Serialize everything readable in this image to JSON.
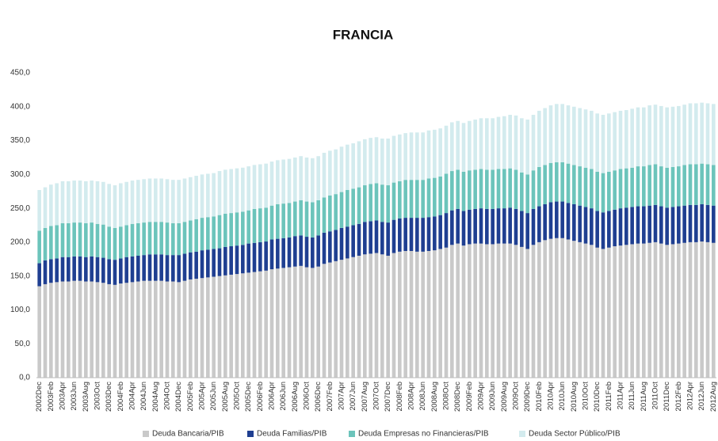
{
  "chart_data": {
    "type": "stacked_bar",
    "title": "FRANCIA",
    "categories": [
      "2002Dec",
      null,
      "2003Feb",
      null,
      "2003Apr",
      null,
      "2003Jun",
      null,
      "2003Aug",
      null,
      "2003Oct",
      null,
      "2003Dec",
      null,
      "2004Feb",
      null,
      "2004Apr",
      null,
      "2004Jun",
      null,
      "2004Aug",
      null,
      "2004Oct",
      null,
      "2004Dec",
      null,
      "2005Feb",
      null,
      "2005Apr",
      null,
      "2005Jun",
      null,
      "2005Aug",
      null,
      "2005Oct",
      null,
      "2005Dec",
      null,
      "2006Feb",
      null,
      "2006Apr",
      null,
      "2006Jun",
      null,
      "2006Aug",
      null,
      "2006Oct",
      null,
      "2006Dec",
      null,
      "2007Feb",
      null,
      "2007Apr",
      null,
      "2007Jun",
      null,
      "2007Aug",
      null,
      "2007Oct",
      null,
      "2007Dec",
      null,
      "2008Feb",
      null,
      "2008Apr",
      null,
      "2008Jun",
      null,
      "2008Aug",
      null,
      "2008Oct",
      null,
      "2008Dec",
      null,
      "2009Feb",
      null,
      "2009Apr",
      null,
      "2009Jun",
      null,
      "2009Aug",
      null,
      "2009Oct",
      null,
      "2009Dec",
      null,
      "2010Feb",
      null,
      "2010Apr",
      null,
      "2010Jun",
      null,
      "2010Aug",
      null,
      "2010Oct",
      null,
      "2010Dec",
      null,
      "2011Feb",
      null,
      "2011Apr",
      null,
      "2011Jun",
      null,
      "2011Aug",
      null,
      "2011Oct",
      null,
      "2011Dec",
      null,
      "2012Feb",
      null,
      "2012Apr",
      null,
      "2012Jun",
      null,
      "2012Aug"
    ],
    "series": [
      {
        "name": "Deuda Bancaria/PIB",
        "color": "#c9c9c9",
        "values": [
          135,
          138,
          140,
          141,
          142,
          142,
          143,
          143,
          142,
          142,
          141,
          140,
          138,
          137,
          139,
          140,
          141,
          142,
          143,
          143,
          143,
          143,
          142,
          142,
          141,
          143,
          145,
          146,
          147,
          148,
          149,
          150,
          151,
          152,
          153,
          154,
          155,
          156,
          157,
          158,
          160,
          161,
          162,
          163,
          164,
          165,
          163,
          162,
          164,
          168,
          170,
          172,
          174,
          176,
          178,
          180,
          182,
          183,
          184,
          182,
          180,
          184,
          186,
          187,
          187,
          186,
          186,
          187,
          188,
          190,
          192,
          196,
          198,
          195,
          197,
          198,
          198,
          197,
          197,
          198,
          198,
          198,
          196,
          193,
          190,
          196,
          200,
          203,
          205,
          206,
          206,
          204,
          202,
          200,
          198,
          196,
          192,
          190,
          192,
          194,
          195,
          196,
          197,
          198,
          198,
          199,
          200,
          198,
          196,
          197,
          198,
          199,
          200,
          200,
          201,
          200,
          199
        ]
      },
      {
        "name": "Deuda Familias/PIB",
        "color": "#1f3f91",
        "values": [
          34,
          35,
          35,
          35,
          36,
          36,
          36,
          36,
          36,
          37,
          37,
          37,
          37,
          37,
          37,
          38,
          38,
          38,
          38,
          39,
          39,
          39,
          39,
          39,
          40,
          40,
          40,
          40,
          41,
          41,
          41,
          41,
          42,
          42,
          42,
          42,
          43,
          43,
          43,
          43,
          44,
          44,
          44,
          44,
          45,
          45,
          45,
          45,
          46,
          46,
          46,
          46,
          47,
          47,
          47,
          47,
          48,
          48,
          48,
          48,
          49,
          49,
          49,
          49,
          49,
          50,
          50,
          50,
          50,
          50,
          51,
          51,
          51,
          51,
          51,
          51,
          52,
          52,
          52,
          52,
          52,
          53,
          53,
          53,
          53,
          53,
          53,
          53,
          54,
          54,
          54,
          54,
          54,
          54,
          54,
          54,
          54,
          54,
          54,
          54,
          55,
          55,
          55,
          55,
          55,
          55,
          55,
          55,
          55,
          55,
          55,
          55,
          55,
          55,
          55,
          55,
          55
        ]
      },
      {
        "name": "Deuda Empresas no Financieras/PIB",
        "color": "#6cc4bb",
        "values": [
          48,
          48,
          49,
          49,
          50,
          50,
          50,
          50,
          50,
          50,
          49,
          49,
          48,
          47,
          47,
          47,
          48,
          48,
          48,
          48,
          48,
          48,
          48,
          47,
          47,
          47,
          47,
          48,
          48,
          48,
          48,
          49,
          49,
          49,
          49,
          49,
          49,
          50,
          50,
          50,
          50,
          51,
          51,
          51,
          51,
          52,
          52,
          52,
          52,
          52,
          53,
          53,
          53,
          54,
          54,
          54,
          54,
          55,
          55,
          55,
          55,
          55,
          55,
          56,
          56,
          56,
          56,
          57,
          57,
          57,
          58,
          58,
          58,
          58,
          58,
          58,
          58,
          58,
          58,
          58,
          58,
          58,
          58,
          57,
          57,
          57,
          58,
          58,
          58,
          58,
          58,
          58,
          58,
          58,
          58,
          58,
          58,
          58,
          58,
          58,
          58,
          58,
          58,
          59,
          59,
          60,
          60,
          59,
          59,
          59,
          59,
          60,
          60,
          60,
          60,
          60,
          60
        ]
      },
      {
        "name": "Deuda Sector Público/PIB",
        "color": "#d3ebee",
        "values": [
          60,
          60,
          61,
          62,
          62,
          62,
          62,
          62,
          62,
          62,
          63,
          63,
          63,
          63,
          64,
          64,
          64,
          64,
          64,
          64,
          64,
          64,
          64,
          64,
          64,
          64,
          64,
          64,
          64,
          64,
          64,
          65,
          65,
          65,
          65,
          65,
          65,
          65,
          65,
          65,
          65,
          65,
          65,
          65,
          65,
          65,
          65,
          65,
          65,
          66,
          66,
          66,
          67,
          67,
          67,
          68,
          68,
          68,
          68,
          68,
          69,
          69,
          69,
          69,
          70,
          70,
          70,
          71,
          71,
          71,
          71,
          72,
          72,
          72,
          73,
          74,
          75,
          76,
          76,
          77,
          78,
          79,
          80,
          80,
          81,
          82,
          83,
          84,
          85,
          86,
          86,
          86,
          86,
          86,
          86,
          86,
          86,
          86,
          86,
          86,
          86,
          86,
          87,
          87,
          87,
          88,
          88,
          89,
          89,
          89,
          89,
          89,
          90,
          90,
          90,
          90,
          90
        ]
      }
    ],
    "ylim": [
      0,
      450
    ],
    "yticks": [
      {
        "value": 0,
        "label": "0,0"
      },
      {
        "value": 50,
        "label": "50,0"
      },
      {
        "value": 100,
        "label": "100,0"
      },
      {
        "value": 150,
        "label": "150,0"
      },
      {
        "value": 200,
        "label": "200,0"
      },
      {
        "value": 250,
        "label": "250,0"
      },
      {
        "value": 300,
        "label": "300,0"
      },
      {
        "value": 350,
        "label": "350,0"
      },
      {
        "value": 400,
        "label": "400,0"
      },
      {
        "value": 450,
        "label": "450,0"
      }
    ],
    "grid": false,
    "legend": "bottom"
  }
}
